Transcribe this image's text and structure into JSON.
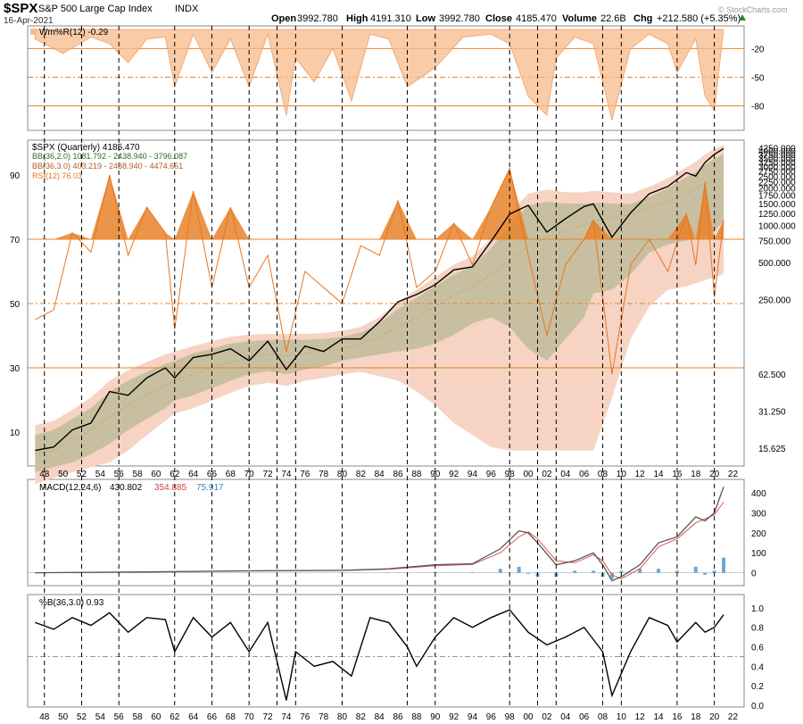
{
  "header": {
    "symbol": "$SPX",
    "name": "S&P 500 Large Cap Index",
    "exchange": "INDX",
    "date": "16-Apr-2021",
    "open_label": "Open",
    "open": "3992.780",
    "high_label": "High",
    "high": "4191.310",
    "low_label": "Low",
    "low": "3992.780",
    "close_label": "Close",
    "close": "4185.470",
    "volume_label": "Volume",
    "volume": "22.6B",
    "chg_label": "Chg",
    "chg": "+212.580 (+5.35%)",
    "watermark": "© StockCharts.com"
  },
  "colors": {
    "price": "#000000",
    "rsi": "#e8761e",
    "rsi_fill": "#e8822a",
    "bb_band": "#c8bfa0",
    "bb_outer": "#f6d3c3",
    "macd": "#555555",
    "signal": "#e05555",
    "hist": "#6aa7d4",
    "willr": "#f7b98a"
  },
  "chart_data": [
    {
      "type": "area",
      "panel": "williams_r",
      "legend": "Wm%R(12) -0.29",
      "y_ticks": [
        "-20",
        "-50",
        "-80"
      ],
      "ylim": [
        -100,
        0
      ],
      "reference_lines": [
        -20,
        -50,
        -80
      ],
      "x": [
        1947,
        1950,
        1953,
        1955,
        1957,
        1959,
        1961,
        1962,
        1964,
        1966,
        1968,
        1970,
        1972,
        1974,
        1975,
        1977,
        1979,
        1981,
        1983,
        1985,
        1987,
        1990,
        1993,
        1996,
        1998,
        2000,
        2002,
        2003,
        2005,
        2007,
        2009,
        2011,
        2013,
        2015,
        2016,
        2018,
        2019,
        2020,
        2021
      ],
      "values": [
        -10,
        -25,
        -8,
        -15,
        -35,
        -10,
        -8,
        -60,
        -5,
        -45,
        -10,
        -60,
        -5,
        -90,
        -30,
        -55,
        -20,
        -75,
        -5,
        -10,
        -60,
        -40,
        -8,
        -5,
        -15,
        -70,
        -90,
        -30,
        -8,
        -15,
        -95,
        -20,
        -5,
        -15,
        -45,
        -10,
        -70,
        -85,
        0
      ]
    },
    {
      "type": "line",
      "panel": "price",
      "legend": [
        "$SPX (Quarterly) 4185.470",
        "BB(36,2.0) 1081.792 - 2438.940 - 3796.087",
        "BB(36,3.0) 403.219 - 2438.940 - 4474.661",
        "RSI(12) 76.03"
      ],
      "y_scale": "log",
      "y_ticks_right": [
        "4250.000",
        "4000.000",
        "3750.000",
        "3500.000",
        "3250.000",
        "3000.000",
        "2750.000",
        "2500.000",
        "2250.000",
        "2000.000",
        "1750.000",
        "1500.000",
        "1250.000",
        "1000.000",
        "750.000",
        "500.000",
        "250.000",
        "62.500",
        "31.250",
        "15.625"
      ],
      "rsi_ticks_left": [
        "90",
        "70",
        "50",
        "30",
        "10"
      ],
      "rsi_levels": [
        70,
        50,
        30
      ],
      "x": [
        1947,
        1949,
        1951,
        1953,
        1955,
        1957,
        1959,
        1961,
        1962,
        1964,
        1966,
        1968,
        1970,
        1972,
        1974,
        1976,
        1978,
        1980,
        1982,
        1984,
        1986,
        1988,
        1990,
        1992,
        1994,
        1996,
        1998,
        2000,
        2002,
        2004,
        2006,
        2007,
        2009,
        2011,
        2013,
        2015,
        2017,
        2018,
        2019,
        2020,
        2021
      ],
      "price": [
        15,
        16,
        22,
        25,
        45,
        42,
        58,
        70,
        58,
        85,
        90,
        100,
        80,
        115,
        68,
        105,
        95,
        120,
        120,
        165,
        240,
        275,
        330,
        435,
        460,
        740,
        1230,
        1450,
        880,
        1130,
        1420,
        1490,
        800,
        1260,
        1800,
        2060,
        2670,
        2500,
        3230,
        3750,
        4185
      ],
      "bb_mid": [
        14,
        15,
        18,
        22,
        28,
        35,
        42,
        50,
        56,
        62,
        70,
        78,
        85,
        90,
        88,
        92,
        96,
        100,
        110,
        125,
        150,
        180,
        220,
        270,
        320,
        400,
        520,
        680,
        800,
        900,
        1000,
        1080,
        1150,
        1220,
        1380,
        1550,
        1800,
        1950,
        2150,
        2300,
        2440
      ],
      "bb_up2": [
        20,
        22,
        27,
        33,
        45,
        55,
        65,
        75,
        80,
        92,
        100,
        110,
        115,
        118,
        118,
        118,
        120,
        125,
        135,
        160,
        210,
        260,
        320,
        400,
        470,
        650,
        1000,
        1450,
        1550,
        1500,
        1500,
        1520,
        1500,
        1480,
        1700,
        2000,
        2450,
        2700,
        3100,
        3450,
        3796
      ],
      "bb_lo2": [
        10,
        11,
        12,
        14,
        17,
        22,
        27,
        33,
        38,
        42,
        48,
        55,
        62,
        66,
        62,
        68,
        72,
        80,
        85,
        90,
        95,
        100,
        110,
        130,
        160,
        180,
        150,
        100,
        80,
        120,
        180,
        280,
        300,
        400,
        600,
        700,
        750,
        800,
        820,
        900,
        1082
      ],
      "bb_up3": [
        24,
        26,
        32,
        40,
        55,
        67,
        78,
        90,
        95,
        105,
        115,
        125,
        130,
        132,
        132,
        132,
        134,
        140,
        150,
        180,
        240,
        300,
        380,
        480,
        560,
        780,
        1250,
        1800,
        1950,
        1850,
        1850,
        1900,
        1850,
        1800,
        2050,
        2400,
        2950,
        3250,
        3750,
        4150,
        4475
      ],
      "bb_lo3": [
        8,
        9,
        10,
        11,
        12,
        15,
        20,
        26,
        30,
        33,
        38,
        44,
        50,
        53,
        50,
        55,
        58,
        62,
        65,
        60,
        55,
        45,
        35,
        25,
        20,
        16,
        15,
        15,
        15,
        15,
        15,
        15,
        40,
        120,
        220,
        300,
        320,
        340,
        360,
        380,
        403
      ],
      "rsi": [
        45,
        48,
        72,
        66,
        90,
        65,
        80,
        72,
        42,
        85,
        55,
        80,
        55,
        65,
        35,
        60,
        55,
        50,
        68,
        65,
        82,
        55,
        60,
        75,
        62,
        80,
        92,
        65,
        40,
        62,
        70,
        76,
        28,
        62,
        70,
        60,
        78,
        62,
        88,
        52,
        76
      ]
    },
    {
      "type": "line",
      "panel": "macd",
      "legend": [
        "MACD(12,24,6)",
        "430.802",
        "354.885",
        "75.917"
      ],
      "y_ticks": [
        "400",
        "300",
        "200",
        "100",
        "0"
      ],
      "ylim": [
        -60,
        450
      ],
      "x": [
        1947,
        1960,
        1970,
        1980,
        1985,
        1990,
        1994,
        1997,
        1999,
        2000,
        2001,
        2003,
        2005,
        2007,
        2008,
        2009,
        2010,
        2012,
        2014,
        2016,
        2018,
        2019,
        2020,
        2021
      ],
      "macd": [
        0,
        5,
        10,
        12,
        20,
        40,
        45,
        120,
        210,
        200,
        150,
        40,
        60,
        100,
        40,
        -40,
        -20,
        40,
        150,
        180,
        280,
        260,
        300,
        431
      ],
      "signal": [
        0,
        4,
        9,
        11,
        18,
        35,
        42,
        100,
        180,
        205,
        170,
        60,
        50,
        90,
        60,
        -10,
        -30,
        20,
        130,
        170,
        250,
        270,
        290,
        355
      ],
      "hist": [
        0,
        1,
        1,
        1,
        2,
        5,
        3,
        20,
        30,
        -5,
        -20,
        -20,
        10,
        10,
        -20,
        -30,
        10,
        20,
        20,
        10,
        30,
        -10,
        10,
        76
      ]
    },
    {
      "type": "line",
      "panel": "percent_b",
      "legend": "%B(36,3.0) 0.93",
      "y_ticks": [
        "1.0",
        "0.8",
        "0.6",
        "0.4",
        "0.2",
        "0.0"
      ],
      "ylim": [
        0,
        1.1
      ],
      "reference_line": 0.5,
      "x": [
        1947,
        1949,
        1951,
        1953,
        1955,
        1957,
        1959,
        1961,
        1962,
        1964,
        1966,
        1968,
        1970,
        1972,
        1974,
        1975,
        1977,
        1979,
        1981,
        1983,
        1985,
        1987,
        1988,
        1990,
        1992,
        1994,
        1996,
        1998,
        2000,
        2002,
        2004,
        2006,
        2008,
        2009,
        2011,
        2013,
        2015,
        2016,
        2018,
        2019,
        2020,
        2021
      ],
      "values": [
        0.85,
        0.78,
        0.9,
        0.82,
        0.95,
        0.75,
        0.9,
        0.88,
        0.55,
        0.9,
        0.7,
        0.85,
        0.55,
        0.85,
        0.05,
        0.55,
        0.4,
        0.45,
        0.3,
        0.9,
        0.85,
        0.6,
        0.4,
        0.7,
        0.9,
        0.8,
        0.9,
        0.98,
        0.75,
        0.62,
        0.7,
        0.8,
        0.55,
        0.1,
        0.55,
        0.9,
        0.82,
        0.65,
        0.85,
        0.75,
        0.8,
        0.93
      ]
    }
  ],
  "x_axis": {
    "labels": [
      "48",
      "50",
      "52",
      "54",
      "56",
      "58",
      "60",
      "62",
      "64",
      "66",
      "68",
      "70",
      "72",
      "74",
      "76",
      "78",
      "80",
      "82",
      "84",
      "86",
      "88",
      "90",
      "92",
      "94",
      "96",
      "98",
      "00",
      "02",
      "04",
      "06",
      "08",
      "10",
      "12",
      "14",
      "16",
      "18",
      "20",
      "22"
    ],
    "start_year": 1948,
    "end_year": 2022
  },
  "vertical_markers": [
    1948,
    1952,
    1956,
    1962,
    1966,
    1970,
    1973,
    1975,
    1980,
    1987,
    1990,
    1998,
    2001,
    2003,
    2008,
    2010,
    2016,
    2020
  ]
}
